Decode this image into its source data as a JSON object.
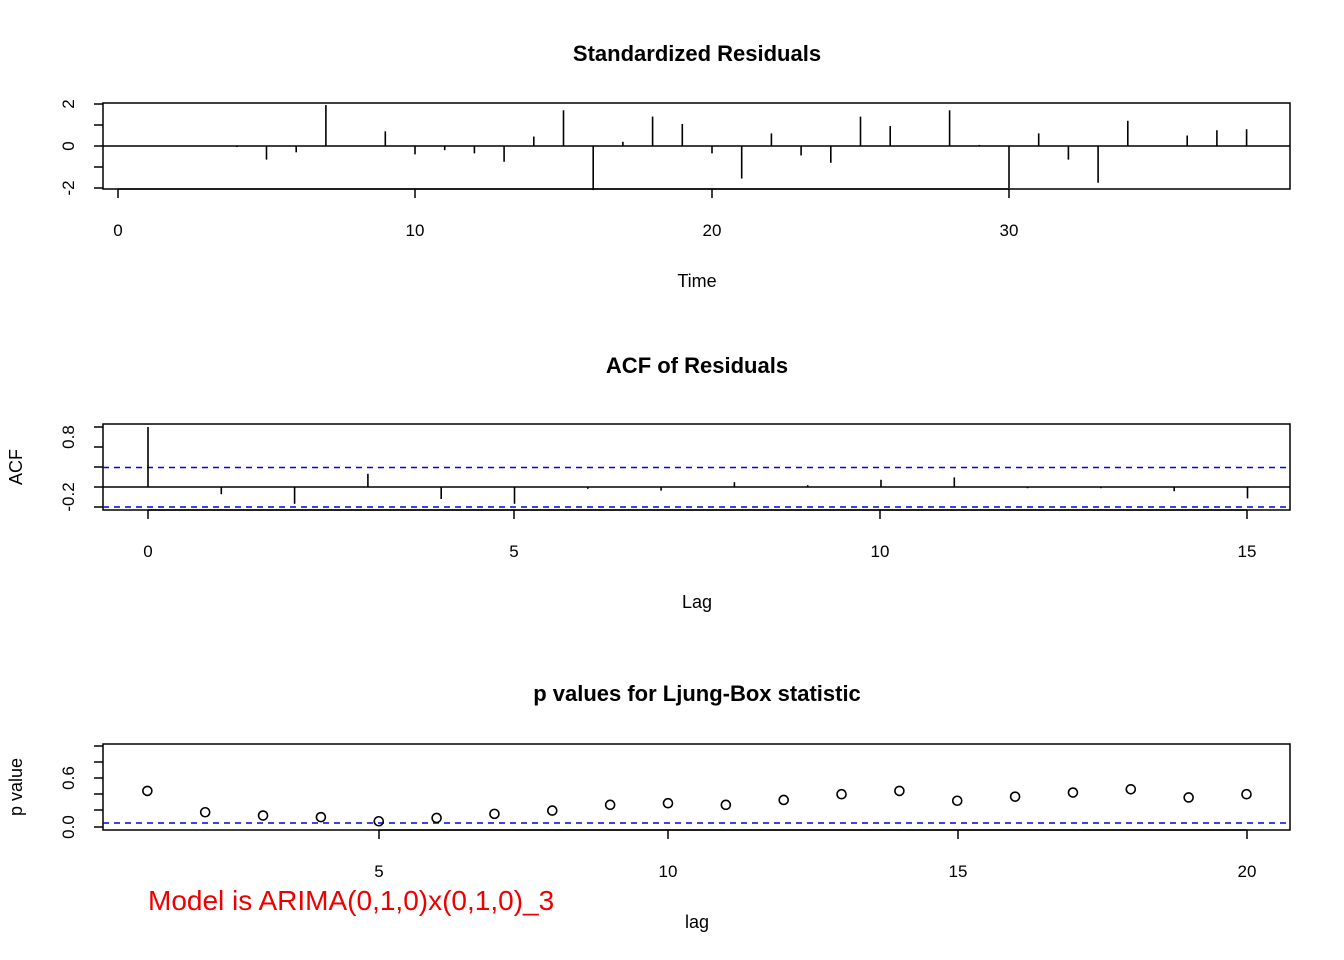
{
  "chart_data": [
    {
      "type": "bar",
      "title": "Standardized Residuals",
      "xlabel": "Time",
      "ylabel": "",
      "xlim": [
        -0.5,
        39.2
      ],
      "ylim": [
        -2.1,
        2.1
      ],
      "xticks": [
        "0",
        "10",
        "20",
        "30"
      ],
      "yticks": [
        "-2",
        "0",
        "2"
      ],
      "x": [
        1,
        2,
        3,
        4,
        5,
        6,
        7,
        8,
        9,
        10,
        11,
        12,
        13,
        14,
        15,
        16,
        17,
        18,
        19,
        20,
        21,
        22,
        23,
        24,
        25,
        26,
        27,
        28,
        29,
        30,
        31,
        32,
        33,
        34,
        35,
        36,
        37,
        38
      ],
      "values": [
        0.02,
        0.01,
        0.01,
        -0.05,
        -0.65,
        -0.3,
        1.95,
        0.0,
        0.7,
        -0.4,
        -0.2,
        -0.35,
        -0.75,
        0.45,
        1.7,
        -2.1,
        0.2,
        1.4,
        1.05,
        -0.35,
        -1.55,
        0.6,
        -0.45,
        -0.8,
        1.4,
        0.95,
        0.02,
        1.7,
        0.05,
        -2.0,
        0.6,
        -0.65,
        -1.75,
        1.2,
        0.02,
        0.5,
        0.75,
        0.8
      ]
    },
    {
      "type": "bar",
      "title": "ACF of Residuals",
      "xlabel": "Lag",
      "ylabel": "ACF",
      "xlim": [
        -1.2,
        15.6
      ],
      "ylim": [
        -0.35,
        1.0
      ],
      "xticks": [
        "0",
        "5",
        "10",
        "15"
      ],
      "yticks": [
        "-0.2",
        "0.2",
        "0.8"
      ],
      "x": [
        0,
        1,
        2,
        3,
        4,
        5,
        6,
        7,
        8,
        9,
        10,
        11,
        12,
        13,
        14,
        15
      ],
      "values": [
        1.0,
        -0.12,
        -0.28,
        0.22,
        -0.2,
        -0.28,
        -0.03,
        -0.06,
        0.08,
        0.03,
        0.12,
        0.16,
        -0.02,
        -0.02,
        -0.07,
        -0.19
      ],
      "confidence_bounds": [
        0.31,
        -0.31
      ]
    },
    {
      "type": "scatter",
      "title": "p values for Ljung-Box statistic",
      "xlabel": "lag",
      "ylabel": "p value",
      "xlim": [
        0.2,
        20.8
      ],
      "ylim": [
        0.0,
        1.0
      ],
      "xticks": [
        "5",
        "10",
        "15",
        "20"
      ],
      "yticks": [
        "0.0",
        "0.6"
      ],
      "x": [
        1,
        2,
        3,
        4,
        5,
        6,
        7,
        8,
        9,
        10,
        11,
        12,
        13,
        14,
        15,
        16,
        17,
        18,
        19,
        20
      ],
      "values": [
        0.44,
        0.18,
        0.14,
        0.12,
        0.07,
        0.11,
        0.16,
        0.2,
        0.27,
        0.29,
        0.27,
        0.33,
        0.4,
        0.44,
        0.32,
        0.37,
        0.42,
        0.46,
        0.36,
        0.4
      ],
      "reference_line": 0.05
    }
  ],
  "annotation": "Model is ARIMA(0,1,0)x(0,1,0)_3",
  "colors": {
    "axis": "#000000",
    "bounds": "#0000ee",
    "annotation": "#ee0000"
  }
}
